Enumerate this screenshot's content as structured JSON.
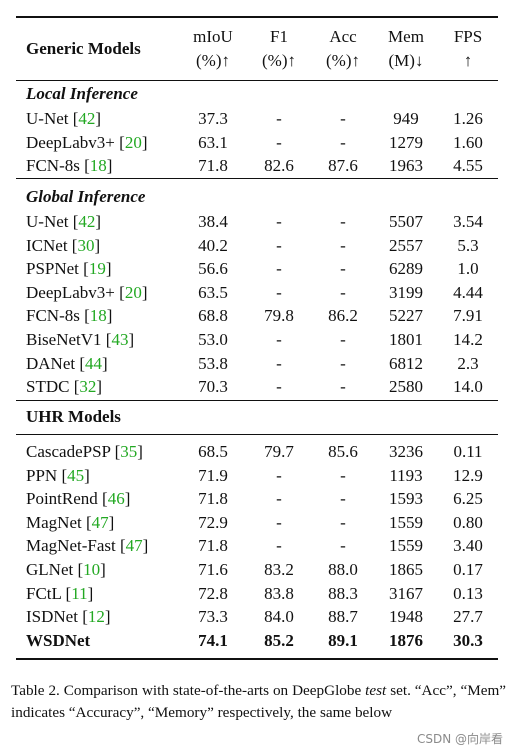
{
  "header": {
    "col0": "Generic Models",
    "cols": [
      {
        "line1": "mIoU",
        "line2": "(%)↑"
      },
      {
        "line1": "F1",
        "line2": "(%)↑"
      },
      {
        "line1": "Acc",
        "line2": "(%)↑"
      },
      {
        "line1": "Mem",
        "line2": "(M)↓"
      },
      {
        "line1": "FPS",
        "line2": "↑"
      }
    ]
  },
  "sections": [
    {
      "title": "Local Inference",
      "rows": [
        {
          "name": "U-Net",
          "ref": "42",
          "miou": "37.3",
          "f1": "-",
          "acc": "-",
          "mem": "949",
          "fps": "1.26"
        },
        {
          "name": "DeepLabv3+",
          "ref": "20",
          "miou": "63.1",
          "f1": "-",
          "acc": "-",
          "mem": "1279",
          "fps": "1.60"
        },
        {
          "name": "FCN-8s",
          "ref": "18",
          "miou": "71.8",
          "f1": "82.6",
          "acc": "87.6",
          "mem": "1963",
          "fps": "4.55"
        }
      ]
    },
    {
      "title": "Global Inference",
      "rows": [
        {
          "name": "U-Net",
          "ref": "42",
          "miou": "38.4",
          "f1": "-",
          "acc": "-",
          "mem": "5507",
          "fps": "3.54"
        },
        {
          "name": "ICNet",
          "ref": "30",
          "miou": "40.2",
          "f1": "-",
          "acc": "-",
          "mem": "2557",
          "fps": "5.3"
        },
        {
          "name": "PSPNet",
          "ref": "19",
          "miou": "56.6",
          "f1": "-",
          "acc": "-",
          "mem": "6289",
          "fps": "1.0"
        },
        {
          "name": "DeepLabv3+",
          "ref": "20",
          "miou": "63.5",
          "f1": "-",
          "acc": "-",
          "mem": "3199",
          "fps": "4.44"
        },
        {
          "name": "FCN-8s",
          "ref": "18",
          "miou": "68.8",
          "f1": "79.8",
          "acc": "86.2",
          "mem": "5227",
          "fps": "7.91"
        },
        {
          "name": "BiseNetV1",
          "ref": "43",
          "miou": "53.0",
          "f1": "-",
          "acc": "-",
          "mem": "1801",
          "fps": "14.2"
        },
        {
          "name": "DANet",
          "ref": "44",
          "miou": "53.8",
          "f1": "-",
          "acc": "-",
          "mem": "6812",
          "fps": "2.3"
        },
        {
          "name": "STDC",
          "ref": "32",
          "miou": "70.3",
          "f1": "-",
          "acc": "-",
          "mem": "2580",
          "fps": "14.0"
        }
      ]
    },
    {
      "title": "UHR Models",
      "rows": [
        {
          "name": "CascadePSP",
          "ref": "35",
          "miou": "68.5",
          "f1": "79.7",
          "acc": "85.6",
          "mem": "3236",
          "fps": "0.11"
        },
        {
          "name": "PPN",
          "ref": "45",
          "miou": "71.9",
          "f1": "-",
          "acc": "-",
          "mem": "1193",
          "fps": "12.9"
        },
        {
          "name": "PointRend",
          "ref": "46",
          "miou": "71.8",
          "f1": "-",
          "acc": "-",
          "mem": "1593",
          "fps": "6.25"
        },
        {
          "name": "MagNet",
          "ref": "47",
          "miou": "72.9",
          "f1": "-",
          "acc": "-",
          "mem": "1559",
          "fps": "0.80"
        },
        {
          "name": "MagNet-Fast",
          "ref": "47",
          "miou": "71.8",
          "f1": "-",
          "acc": "-",
          "mem": "1559",
          "fps": "3.40"
        },
        {
          "name": "GLNet",
          "ref": "10",
          "miou": "71.6",
          "f1": "83.2",
          "acc": "88.0",
          "mem": "1865",
          "fps": "0.17"
        },
        {
          "name": "FCtL",
          "ref": "11",
          "miou": "72.8",
          "f1": "83.8",
          "acc": "88.3",
          "mem": "3167",
          "fps": "0.13"
        },
        {
          "name": "ISDNet",
          "ref": "12",
          "miou": "73.3",
          "f1": "84.0",
          "acc": "88.7",
          "mem": "1948",
          "fps": "27.7"
        },
        {
          "name": "WSDNet",
          "ref": "",
          "miou": "74.1",
          "f1": "85.2",
          "acc": "89.1",
          "mem": "1876",
          "fps": "30.3",
          "bold": true
        }
      ]
    }
  ],
  "caption": {
    "prefix": "Table 2. Comparison with state-of-the-arts on DeepGlobe ",
    "italic": "test",
    "suffix": " set. “Acc”, “Mem” indicates “Accuracy”, “Memory” respectively, the same below"
  },
  "watermark": "CSDN @向岸看",
  "colors": {
    "reference": "#22a822",
    "text": "#111111"
  }
}
